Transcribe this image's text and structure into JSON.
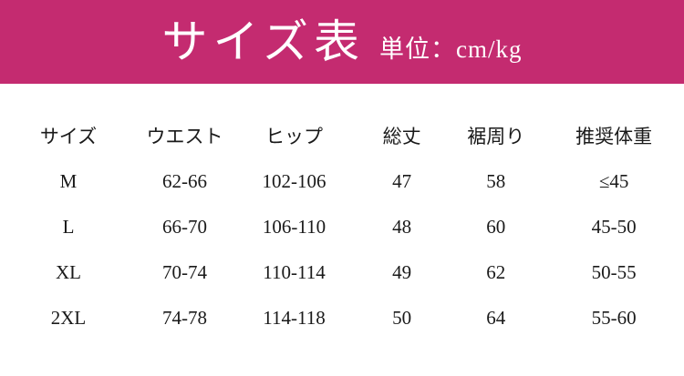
{
  "banner": {
    "title": "サイズ表",
    "unit_label": "単位：cm/kg",
    "bg_color": "#C42B70",
    "text_color": "#FFFFFF"
  },
  "table": {
    "headers": [
      "サイズ",
      "ウエスト",
      "ヒップ",
      "総丈",
      "裾周り",
      "推奨体重"
    ],
    "rows": [
      [
        "M",
        "62-66",
        "102-106",
        "47",
        "58",
        "≤45"
      ],
      [
        "L",
        "66-70",
        "106-110",
        "48",
        "60",
        "45-50"
      ],
      [
        "XL",
        "70-74",
        "110-114",
        "49",
        "62",
        "50-55"
      ],
      [
        "2XL",
        "74-78",
        "114-118",
        "50",
        "64",
        "55-60"
      ]
    ]
  },
  "chart_data": {
    "type": "table",
    "title": "サイズ表",
    "unit": "cm/kg",
    "columns": [
      "サイズ",
      "ウエスト",
      "ヒップ",
      "総丈",
      "裾周り",
      "推奨体重"
    ],
    "rows": [
      {
        "サイズ": "M",
        "ウエスト": "62-66",
        "ヒップ": "102-106",
        "総丈": 47,
        "裾周り": 58,
        "推奨体重": "≤45"
      },
      {
        "サイズ": "L",
        "ウエスト": "66-70",
        "ヒップ": "106-110",
        "総丈": 48,
        "裾周り": 60,
        "推奨体重": "45-50"
      },
      {
        "サイズ": "XL",
        "ウエスト": "70-74",
        "ヒップ": "110-114",
        "総丈": 49,
        "裾周り": 62,
        "推奨体重": "50-55"
      },
      {
        "サイズ": "2XL",
        "ウエスト": "74-78",
        "ヒップ": "114-118",
        "総丈": 50,
        "裾周り": 64,
        "推奨体重": "55-60"
      }
    ]
  }
}
